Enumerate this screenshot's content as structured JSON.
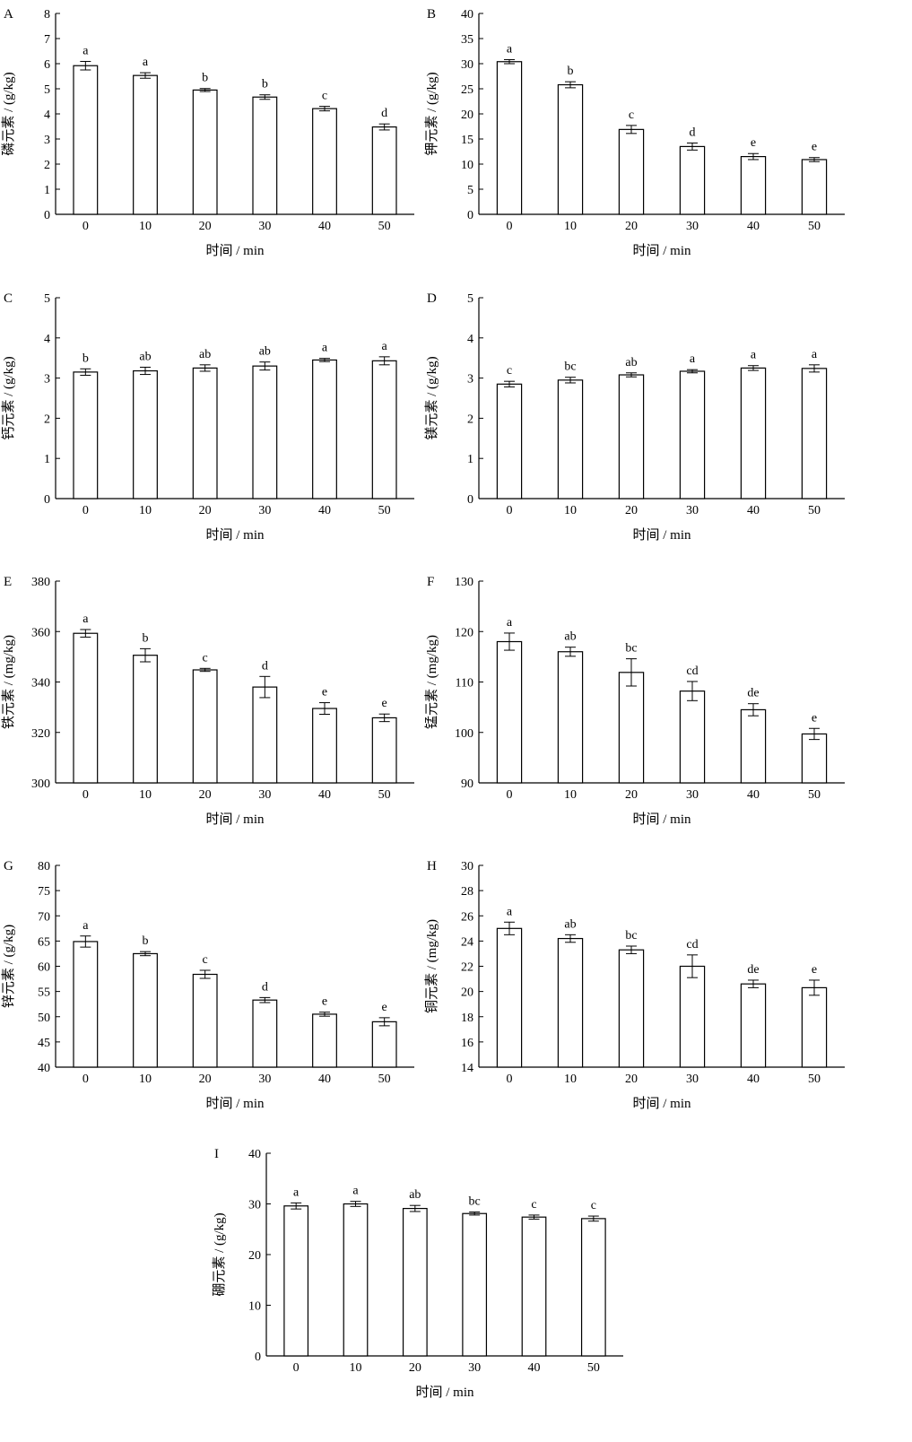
{
  "figure": {
    "panels": [
      {
        "letter": "A",
        "ylabel": "磷元素 / (g/kg)",
        "xlabel": "时间 / min"
      },
      {
        "letter": "B",
        "ylabel": "钾元素 / (g/kg)",
        "xlabel": "时间 / min"
      },
      {
        "letter": "C",
        "ylabel": "钙元素 / (g/kg)",
        "xlabel": "时间 / min"
      },
      {
        "letter": "D",
        "ylabel": "镁元素 / (g/kg)",
        "xlabel": "时间 / min"
      },
      {
        "letter": "E",
        "ylabel": "铁元素 / (mg/kg)",
        "xlabel": "时间 / min"
      },
      {
        "letter": "F",
        "ylabel": "锰元素 / (mg/kg)",
        "xlabel": "时间 / min"
      },
      {
        "letter": "G",
        "ylabel": "锌元素 / (g/kg)",
        "xlabel": "时间 / min"
      },
      {
        "letter": "H",
        "ylabel": "铜元素 / (mg/kg)",
        "xlabel": "时间 / min"
      },
      {
        "letter": "I",
        "ylabel": "硼元素 / (g/kg)",
        "xlabel": "时间 / min"
      }
    ]
  },
  "chart_data": [
    {
      "panel": "A",
      "type": "bar",
      "categories": [
        "0",
        "10",
        "20",
        "30",
        "40",
        "50"
      ],
      "values": [
        5.92,
        5.53,
        4.95,
        4.67,
        4.21,
        3.48
      ],
      "errors": [
        0.17,
        0.11,
        0.06,
        0.09,
        0.09,
        0.12
      ],
      "significance": [
        "a",
        "a",
        "b",
        "b",
        "c",
        "d"
      ],
      "xlabel": "时间 / min",
      "ylabel": "磷元素 / (g/kg)",
      "ylim": [
        0,
        8
      ],
      "yticks": [
        0,
        1,
        2,
        3,
        4,
        5,
        6,
        7,
        8
      ],
      "grid": false
    },
    {
      "panel": "B",
      "type": "bar",
      "categories": [
        "0",
        "10",
        "20",
        "30",
        "40",
        "50"
      ],
      "values": [
        30.4,
        25.8,
        16.9,
        13.5,
        11.5,
        10.9
      ],
      "errors": [
        0.4,
        0.6,
        0.8,
        0.7,
        0.6,
        0.4
      ],
      "significance": [
        "a",
        "b",
        "c",
        "d",
        "e",
        "e"
      ],
      "xlabel": "时间 / min",
      "ylabel": "钾元素 / (g/kg)",
      "ylim": [
        0,
        40
      ],
      "yticks": [
        0,
        5,
        10,
        15,
        20,
        25,
        30,
        35,
        40
      ],
      "grid": false
    },
    {
      "panel": "C",
      "type": "bar",
      "categories": [
        "0",
        "10",
        "20",
        "30",
        "40",
        "50"
      ],
      "values": [
        3.15,
        3.18,
        3.25,
        3.3,
        3.45,
        3.43
      ],
      "errors": [
        0.08,
        0.09,
        0.08,
        0.1,
        0.04,
        0.1
      ],
      "significance": [
        "b",
        "ab",
        "ab",
        "ab",
        "a",
        "a"
      ],
      "xlabel": "时间 / min",
      "ylabel": "钙元素 / (g/kg)",
      "ylim": [
        0,
        5
      ],
      "yticks": [
        0,
        1,
        2,
        3,
        4,
        5
      ],
      "grid": false
    },
    {
      "panel": "D",
      "type": "bar",
      "categories": [
        "0",
        "10",
        "20",
        "30",
        "40",
        "50"
      ],
      "values": [
        2.85,
        2.95,
        3.08,
        3.17,
        3.25,
        3.24
      ],
      "errors": [
        0.07,
        0.07,
        0.05,
        0.04,
        0.06,
        0.09
      ],
      "significance": [
        "c",
        "bc",
        "ab",
        "a",
        "a",
        "a"
      ],
      "xlabel": "时间 / min",
      "ylabel": "镁元素 / (g/kg)",
      "ylim": [
        0,
        5
      ],
      "yticks": [
        0,
        1,
        2,
        3,
        4,
        5
      ],
      "grid": false
    },
    {
      "panel": "E",
      "type": "bar",
      "categories": [
        "0",
        "10",
        "20",
        "30",
        "40",
        "50"
      ],
      "values": [
        359.3,
        350.6,
        344.8,
        338.0,
        329.5,
        325.8
      ],
      "errors": [
        1.5,
        2.6,
        0.6,
        4.2,
        2.3,
        1.5
      ],
      "significance": [
        "a",
        "b",
        "c",
        "d",
        "e",
        "e"
      ],
      "xlabel": "时间 / min",
      "ylabel": "铁元素 / (mg/kg)",
      "ylim": [
        300,
        380
      ],
      "yticks": [
        300,
        320,
        340,
        360,
        380
      ],
      "grid": false
    },
    {
      "panel": "F",
      "type": "bar",
      "categories": [
        "0",
        "10",
        "20",
        "30",
        "40",
        "50"
      ],
      "values": [
        118.0,
        116.0,
        111.9,
        108.2,
        104.5,
        99.7
      ],
      "errors": [
        1.7,
        0.9,
        2.7,
        1.9,
        1.2,
        1.1
      ],
      "significance": [
        "a",
        "ab",
        "bc",
        "cd",
        "de",
        "e"
      ],
      "xlabel": "时间 / min",
      "ylabel": "锰元素 / (mg/kg)",
      "ylim": [
        90,
        130
      ],
      "yticks": [
        90,
        100,
        110,
        120,
        130
      ],
      "grid": false
    },
    {
      "panel": "G",
      "type": "bar",
      "categories": [
        "0",
        "10",
        "20",
        "30",
        "40",
        "50"
      ],
      "values": [
        64.9,
        62.5,
        58.4,
        53.3,
        50.5,
        49.0
      ],
      "errors": [
        1.1,
        0.4,
        0.8,
        0.5,
        0.4,
        0.8
      ],
      "significance": [
        "a",
        "b",
        "c",
        "d",
        "e",
        "e"
      ],
      "xlabel": "时间 / min",
      "ylabel": "锌元素 / (g/kg)",
      "ylim": [
        40,
        80
      ],
      "yticks": [
        40,
        45,
        50,
        55,
        60,
        65,
        70,
        75,
        80
      ],
      "grid": false
    },
    {
      "panel": "H",
      "type": "bar",
      "categories": [
        "0",
        "10",
        "20",
        "30",
        "40",
        "50"
      ],
      "values": [
        25.0,
        24.2,
        23.3,
        22.0,
        20.6,
        20.3
      ],
      "errors": [
        0.5,
        0.3,
        0.3,
        0.9,
        0.3,
        0.6
      ],
      "significance": [
        "a",
        "ab",
        "bc",
        "cd",
        "de",
        "e"
      ],
      "xlabel": "时间 / min",
      "ylabel": "铜元素 / (mg/kg)",
      "ylim": [
        14,
        30
      ],
      "yticks": [
        14,
        16,
        18,
        20,
        22,
        24,
        26,
        28,
        30
      ],
      "grid": false
    },
    {
      "panel": "I",
      "type": "bar",
      "categories": [
        "0",
        "10",
        "20",
        "30",
        "40",
        "50"
      ],
      "values": [
        29.6,
        30.0,
        29.1,
        28.1,
        27.4,
        27.1
      ],
      "errors": [
        0.6,
        0.5,
        0.6,
        0.3,
        0.4,
        0.5
      ],
      "significance": [
        "a",
        "a",
        "ab",
        "bc",
        "c",
        "c"
      ],
      "xlabel": "时间 / min",
      "ylabel": "硼元素 / (g/kg)",
      "ylim": [
        0,
        40
      ],
      "yticks": [
        0,
        10,
        20,
        30,
        40
      ],
      "grid": false
    }
  ]
}
